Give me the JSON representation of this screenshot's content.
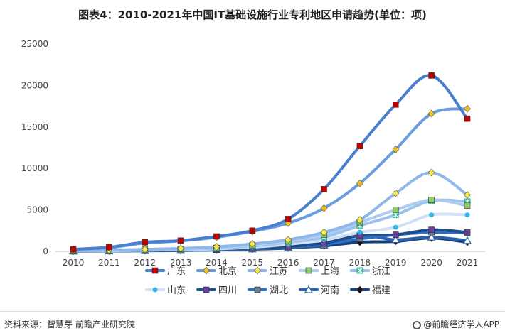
{
  "title": "图表4：2010-2021年中国IT基础设施行业专利地区申请趋势(单位：项)",
  "source": "资料来源：智慧芽 前瞻产业研究院",
  "brand": "@前瞻经济学人APP",
  "chart_data": {
    "type": "line",
    "title": "图表4：2010-2021年中国IT基础设施行业专利地区申请趋势(单位：项)",
    "xlabel": "",
    "ylabel": "",
    "x": [
      "2010",
      "2011",
      "2012",
      "2013",
      "2014",
      "2015",
      "2016",
      "2017",
      "2018",
      "2019",
      "2020",
      "2021"
    ],
    "ylim": [
      0,
      25000
    ],
    "yticks": [
      0,
      5000,
      10000,
      15000,
      20000,
      25000
    ],
    "grid": false,
    "legend": "bottom",
    "series": [
      {
        "name": "广东",
        "color": "#4a7fcf",
        "marker": "square",
        "marker_color": "#c00000",
        "values": [
          250,
          500,
          1100,
          1300,
          1800,
          2500,
          3900,
          7500,
          12700,
          17700,
          21200,
          16000
        ]
      },
      {
        "name": "北京",
        "color": "#6a9de0",
        "marker": "diamond",
        "marker_color": "#f0c020",
        "values": [
          250,
          450,
          1000,
          1250,
          1700,
          2400,
          3400,
          5200,
          8200,
          12300,
          16600,
          17200
        ]
      },
      {
        "name": "江苏",
        "color": "#8fb8ea",
        "marker": "diamond",
        "marker_color": "#f7e84a",
        "values": [
          80,
          150,
          250,
          350,
          550,
          900,
          1400,
          2300,
          3800,
          7000,
          9500,
          6800
        ]
      },
      {
        "name": "上海",
        "color": "#aecbf0",
        "marker": "square",
        "marker_color": "#8fcf6a",
        "values": [
          70,
          120,
          200,
          280,
          420,
          750,
          1200,
          2000,
          3500,
          5000,
          6200,
          5500
        ]
      },
      {
        "name": "浙江",
        "color": "#9cc2ec",
        "marker": "star",
        "marker_color": "#3fb89a",
        "values": [
          60,
          100,
          180,
          250,
          380,
          650,
          1100,
          1700,
          3100,
          4400,
          6100,
          6000
        ]
      },
      {
        "name": "山东",
        "color": "#cfe0f5",
        "marker": "circle",
        "marker_color": "#31b7e8",
        "values": [
          50,
          80,
          140,
          200,
          300,
          500,
          850,
          1400,
          2300,
          2900,
          4400,
          4400
        ]
      },
      {
        "name": "四川",
        "color": "#1f4e8c",
        "marker": "square",
        "marker_color": "#6a3fa0",
        "values": [
          40,
          70,
          120,
          170,
          250,
          400,
          600,
          1000,
          1900,
          2000,
          2600,
          2300
        ]
      },
      {
        "name": "湖北",
        "color": "#2e6fc0",
        "marker": "square",
        "marker_color": "#6a7f95",
        "values": [
          30,
          60,
          100,
          150,
          220,
          350,
          550,
          850,
          1500,
          2000,
          2300,
          2200
        ]
      },
      {
        "name": "河南",
        "color": "#2a60a8",
        "marker": "triangle",
        "marker_color": "#ffffff",
        "values": [
          20,
          40,
          80,
          120,
          180,
          280,
          450,
          750,
          1900,
          1400,
          1700,
          1300
        ]
      },
      {
        "name": "福建",
        "color": "#163f7a",
        "marker": "diamond",
        "marker_color": "#111111",
        "values": [
          20,
          40,
          70,
          100,
          160,
          250,
          400,
          650,
          1100,
          1200,
          1600,
          1100
        ]
      }
    ]
  }
}
